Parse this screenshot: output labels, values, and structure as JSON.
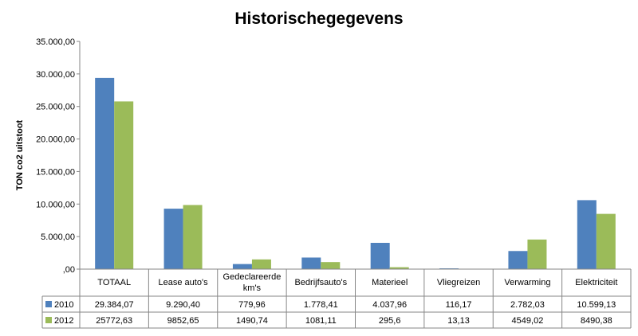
{
  "chart_data": {
    "type": "bar",
    "title": "Historischegegevens",
    "ylabel": "TON co2 uitstoot",
    "xlabel": "",
    "ylim": [
      0,
      35000
    ],
    "y_ticks": [
      0,
      5000,
      10000,
      15000,
      20000,
      25000,
      30000,
      35000
    ],
    "y_tick_labels": [
      ",00",
      "5.000,00",
      "10.000,00",
      "15.000,00",
      "20.000,00",
      "25.000,00",
      "30.000,00",
      "35.000,00"
    ],
    "grid": false,
    "legend": "data-table",
    "categories": [
      "TOTAAL",
      "Lease auto's",
      "Gedeclareerde km's",
      "Bedrijfsauto's",
      "Materieel",
      "Vliegreizen",
      "Verwarming",
      "Elektriciteit"
    ],
    "series": [
      {
        "name": "2010",
        "color": "#4F81BD",
        "values": [
          29384.07,
          9290.4,
          779.96,
          1778.41,
          4037.96,
          116.17,
          2782.03,
          10599.13
        ],
        "labels": [
          "29.384,07",
          "9.290,40",
          "779,96",
          "1.778,41",
          "4.037,96",
          "116,17",
          "2.782,03",
          "10.599,13"
        ]
      },
      {
        "name": "2012",
        "color": "#9BBB59",
        "values": [
          25772.63,
          9852.65,
          1490.74,
          1081.11,
          295.6,
          13.13,
          4549.02,
          8490.38
        ],
        "labels": [
          "25772,63",
          "9852,65",
          "1490,74",
          "1081,11",
          "295,6",
          "13,13",
          "4549,02",
          "8490,38"
        ]
      }
    ]
  }
}
